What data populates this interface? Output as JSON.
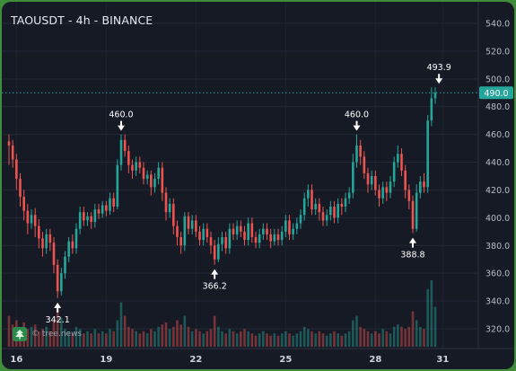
{
  "header": {
    "title": "TAOUSDT - 4h - BINANCE"
  },
  "watermark": {
    "text": "© tree.news"
  },
  "colors": {
    "background": "#161a25",
    "border": "#3f8d3a",
    "up": "#26a69a",
    "down": "#ef5350",
    "text": "#d1d4dc",
    "price_tag": "#26a69a"
  },
  "chart_data": {
    "type": "candlestick",
    "title": "TAOUSDT - 4h - BINANCE",
    "ylim": [
      310,
      545
    ],
    "y_ticks": [
      320.0,
      340.0,
      360.0,
      380.0,
      400.0,
      420.0,
      440.0,
      460.0,
      480.0,
      500.0,
      520.0,
      540.0
    ],
    "x_ticks": [
      "16",
      "19",
      "22",
      "25",
      "28",
      "31"
    ],
    "current_price": "490.0",
    "price_line": 490.0,
    "annotations": [
      {
        "text": "342.1",
        "value": 342.1,
        "direction": "up"
      },
      {
        "text": "460.0",
        "value": 460.0,
        "direction": "down"
      },
      {
        "text": "366.2",
        "value": 366.2,
        "direction": "up"
      },
      {
        "text": "460.0",
        "value": 460.0,
        "direction": "down"
      },
      {
        "text": "388.8",
        "value": 388.8,
        "direction": "up"
      },
      {
        "text": "493.9",
        "value": 493.9,
        "direction": "down"
      }
    ],
    "candles": [
      [
        455,
        452,
        460,
        438
      ],
      [
        452,
        442,
        456,
        436
      ],
      [
        442,
        428,
        446,
        420
      ],
      [
        428,
        415,
        432,
        408
      ],
      [
        415,
        405,
        420,
        398
      ],
      [
        405,
        396,
        410,
        388
      ],
      [
        396,
        402,
        406,
        392
      ],
      [
        402,
        394,
        407,
        386
      ],
      [
        394,
        385,
        399,
        378
      ],
      [
        385,
        378,
        390,
        372
      ],
      [
        378,
        388,
        392,
        374
      ],
      [
        388,
        382,
        392,
        376
      ],
      [
        382,
        366,
        386,
        360
      ],
      [
        366,
        347,
        370,
        342.1
      ],
      [
        347,
        360,
        364,
        344
      ],
      [
        360,
        372,
        376,
        356
      ],
      [
        372,
        383,
        386,
        368
      ],
      [
        383,
        378,
        388,
        374
      ],
      [
        378,
        392,
        396,
        374
      ],
      [
        392,
        404,
        408,
        388
      ],
      [
        404,
        398,
        408,
        394
      ],
      [
        398,
        401,
        404,
        394
      ],
      [
        401,
        397,
        404,
        392
      ],
      [
        397,
        406,
        410,
        393
      ],
      [
        406,
        403,
        410,
        399
      ],
      [
        403,
        409,
        412,
        400
      ],
      [
        409,
        405,
        412,
        401
      ],
      [
        405,
        414,
        418,
        402
      ],
      [
        414,
        408,
        418,
        404
      ],
      [
        408,
        438,
        442,
        406
      ],
      [
        438,
        456,
        460,
        434
      ],
      [
        456,
        448,
        460,
        444
      ],
      [
        448,
        438,
        452,
        432
      ],
      [
        438,
        434,
        442,
        428
      ],
      [
        434,
        440,
        444,
        430
      ],
      [
        440,
        436,
        444,
        432
      ],
      [
        436,
        428,
        440,
        424
      ],
      [
        428,
        431,
        434,
        424
      ],
      [
        431,
        422,
        434,
        416
      ],
      [
        422,
        428,
        432,
        418
      ],
      [
        428,
        436,
        440,
        424
      ],
      [
        436,
        418,
        440,
        412
      ],
      [
        418,
        404,
        422,
        398
      ],
      [
        404,
        410,
        414,
        400
      ],
      [
        410,
        394,
        414,
        388
      ],
      [
        394,
        386,
        398,
        380
      ],
      [
        386,
        380,
        390,
        374
      ],
      [
        380,
        401,
        404,
        376
      ],
      [
        401,
        392,
        404,
        388
      ],
      [
        392,
        398,
        402,
        388
      ],
      [
        398,
        390,
        402,
        386
      ],
      [
        390,
        384,
        394,
        380
      ],
      [
        384,
        392,
        396,
        380
      ],
      [
        392,
        386,
        396,
        382
      ],
      [
        386,
        380,
        390,
        374
      ],
      [
        380,
        370,
        384,
        366.2
      ],
      [
        370,
        381,
        386,
        368
      ],
      [
        381,
        386,
        390,
        376
      ],
      [
        386,
        378,
        390,
        374
      ],
      [
        378,
        392,
        396,
        374
      ],
      [
        392,
        388,
        396,
        384
      ],
      [
        388,
        394,
        398,
        384
      ],
      [
        394,
        390,
        398,
        386
      ],
      [
        390,
        384,
        394,
        380
      ],
      [
        384,
        396,
        400,
        380
      ],
      [
        396,
        386,
        400,
        382
      ],
      [
        386,
        382,
        390,
        378
      ],
      [
        382,
        388,
        392,
        378
      ],
      [
        388,
        392,
        396,
        384
      ],
      [
        392,
        388,
        396,
        384
      ],
      [
        388,
        383,
        392,
        378
      ],
      [
        383,
        388,
        392,
        380
      ],
      [
        388,
        384,
        392,
        380
      ],
      [
        384,
        390,
        394,
        380
      ],
      [
        390,
        398,
        402,
        386
      ],
      [
        398,
        388,
        402,
        384
      ],
      [
        388,
        392,
        396,
        384
      ],
      [
        392,
        396,
        400,
        388
      ],
      [
        396,
        402,
        406,
        392
      ],
      [
        402,
        414,
        418,
        398
      ],
      [
        414,
        420,
        424,
        408
      ],
      [
        420,
        406,
        424,
        402
      ],
      [
        406,
        410,
        414,
        402
      ],
      [
        410,
        404,
        414,
        398
      ],
      [
        404,
        398,
        408,
        394
      ],
      [
        398,
        402,
        406,
        394
      ],
      [
        402,
        408,
        412,
        398
      ],
      [
        408,
        400,
        412,
        396
      ],
      [
        400,
        410,
        414,
        396
      ],
      [
        410,
        408,
        414,
        402
      ],
      [
        408,
        414,
        418,
        404
      ],
      [
        414,
        418,
        422,
        410
      ],
      [
        418,
        440,
        446,
        414
      ],
      [
        440,
        452,
        460,
        436
      ],
      [
        452,
        444,
        456,
        438
      ],
      [
        444,
        432,
        448,
        428
      ],
      [
        432,
        424,
        436,
        418
      ],
      [
        424,
        430,
        434,
        420
      ],
      [
        430,
        420,
        434,
        416
      ],
      [
        420,
        414,
        424,
        408
      ],
      [
        414,
        422,
        426,
        410
      ],
      [
        422,
        418,
        426,
        412
      ],
      [
        418,
        426,
        430,
        414
      ],
      [
        426,
        440,
        444,
        422
      ],
      [
        440,
        446,
        452,
        436
      ],
      [
        446,
        434,
        450,
        430
      ],
      [
        434,
        420,
        438,
        414
      ],
      [
        420,
        412,
        424,
        406
      ],
      [
        412,
        392,
        416,
        388.8
      ],
      [
        392,
        418,
        424,
        390
      ],
      [
        418,
        426,
        430,
        414
      ],
      [
        426,
        422,
        432,
        418
      ],
      [
        422,
        470,
        474,
        418
      ],
      [
        470,
        486,
        493.9,
        466
      ],
      [
        486,
        490,
        493.9,
        482
      ]
    ],
    "volumes": [
      14,
      10,
      12,
      9,
      11,
      8,
      9,
      10,
      7,
      8,
      9,
      7,
      12,
      18,
      13,
      8,
      7,
      6,
      9,
      8,
      6,
      7,
      6,
      8,
      6,
      7,
      6,
      8,
      7,
      12,
      20,
      14,
      9,
      8,
      7,
      6,
      7,
      6,
      8,
      7,
      9,
      10,
      11,
      8,
      9,
      12,
      10,
      14,
      9,
      7,
      8,
      7,
      6,
      7,
      8,
      14,
      9,
      7,
      6,
      8,
      7,
      6,
      7,
      8,
      7,
      6,
      5,
      6,
      7,
      6,
      5,
      6,
      5,
      6,
      7,
      6,
      5,
      6,
      7,
      9,
      8,
      7,
      6,
      7,
      6,
      5,
      6,
      7,
      6,
      5,
      6,
      7,
      12,
      14,
      9,
      8,
      7,
      6,
      7,
      6,
      8,
      7,
      6,
      9,
      10,
      9,
      8,
      9,
      16,
      12,
      9,
      8,
      26,
      30,
      18
    ]
  }
}
